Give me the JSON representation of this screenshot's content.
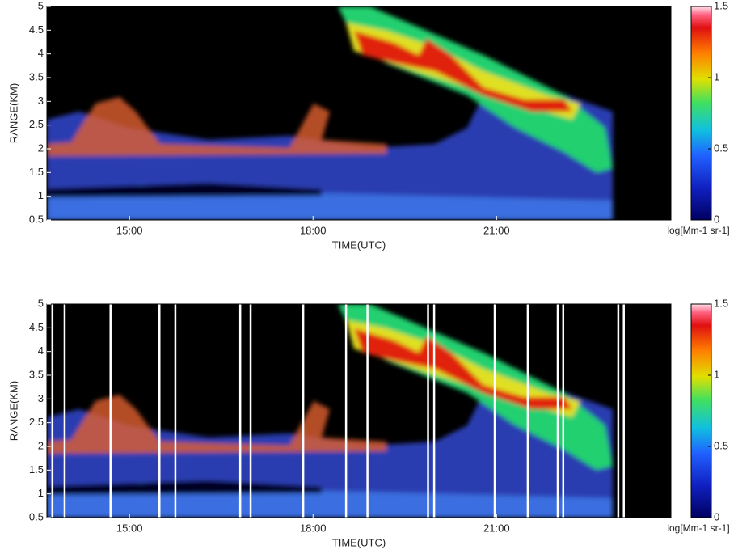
{
  "chart_data": [
    {
      "type": "heatmap",
      "ylabel": "RANGE(KM)",
      "xlabel": "TIME(UTC)",
      "ylim": [
        0.5,
        5
      ],
      "yticks": [
        0.5,
        1,
        1.5,
        2,
        2.5,
        3,
        3.5,
        4,
        4.5,
        5
      ],
      "xlim": [
        13.65,
        23.85
      ],
      "xticks": [
        {
          "value": 15,
          "label": "15:00"
        },
        {
          "value": 18,
          "label": "18:00"
        },
        {
          "value": 21,
          "label": "21:00"
        }
      ],
      "clim": [
        0,
        1.5
      ],
      "cticks": [
        0,
        0.5,
        1,
        1.5
      ],
      "colorbar_label": "log[Mm-1 sr-1]"
    },
    {
      "type": "heatmap",
      "ylabel": "RANGE(KM)",
      "xlabel": "TIME(UTC)",
      "ylim": [
        0.5,
        5
      ],
      "yticks": [
        0.5,
        1,
        1.5,
        2,
        2.5,
        3,
        3.5,
        4,
        4.5,
        5
      ],
      "xlim": [
        13.65,
        23.85
      ],
      "xticks": [
        {
          "value": 15,
          "label": "15:00"
        },
        {
          "value": 18,
          "label": "18:00"
        },
        {
          "value": 21,
          "label": "21:00"
        }
      ],
      "clim": [
        0,
        1.5
      ],
      "cticks": [
        0,
        0.5,
        1,
        1.5
      ],
      "colorbar_label": "log[Mm-1 sr-1]",
      "vlines": [
        13.74,
        13.94,
        14.69,
        15.49,
        15.75,
        16.81,
        16.98,
        17.84,
        18.54,
        18.89,
        19.88,
        19.98,
        20.97,
        21.51,
        22.0,
        22.09,
        22.99,
        23.08
      ]
    }
  ]
}
